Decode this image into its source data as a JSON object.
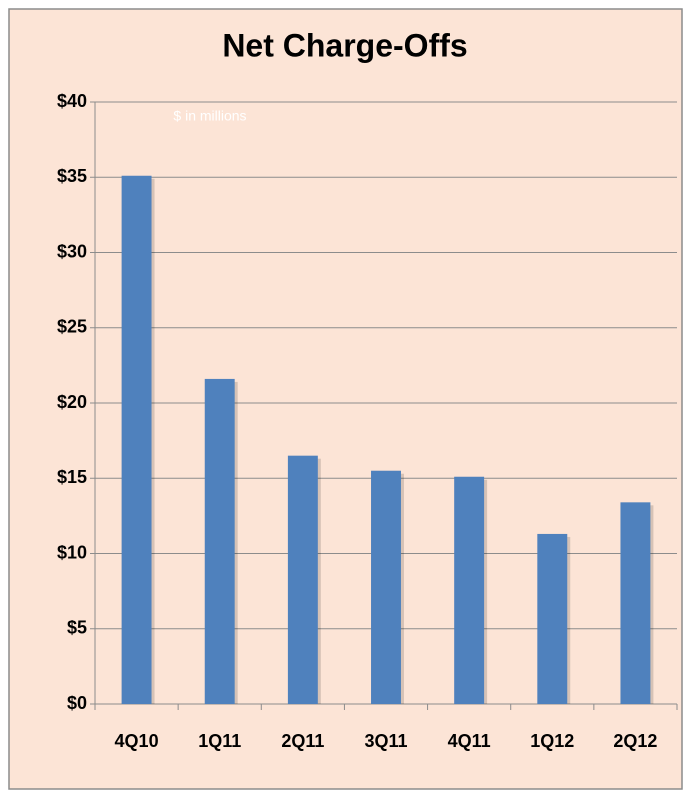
{
  "chart_data": {
    "type": "bar",
    "title": "Net Charge-Offs",
    "subtitle": "$ in millions",
    "categories": [
      "4Q10",
      "1Q11",
      "2Q11",
      "3Q11",
      "4Q11",
      "1Q12",
      "2Q12"
    ],
    "values": [
      35.1,
      21.6,
      16.5,
      15.5,
      15.1,
      11.3,
      13.4
    ],
    "color": "#4f81bd",
    "ylim": [
      0,
      40
    ],
    "yticks": [
      {
        "value": 0,
        "label": "$0"
      },
      {
        "value": 5,
        "label": "$5"
      },
      {
        "value": 10,
        "label": "$10"
      },
      {
        "value": 15,
        "label": "$15"
      },
      {
        "value": 20,
        "label": "$20"
      },
      {
        "value": 25,
        "label": "$25"
      },
      {
        "value": 30,
        "label": "$30"
      },
      {
        "value": 35,
        "label": "$35"
      },
      {
        "value": 40,
        "label": "$40"
      }
    ],
    "grid": true
  }
}
